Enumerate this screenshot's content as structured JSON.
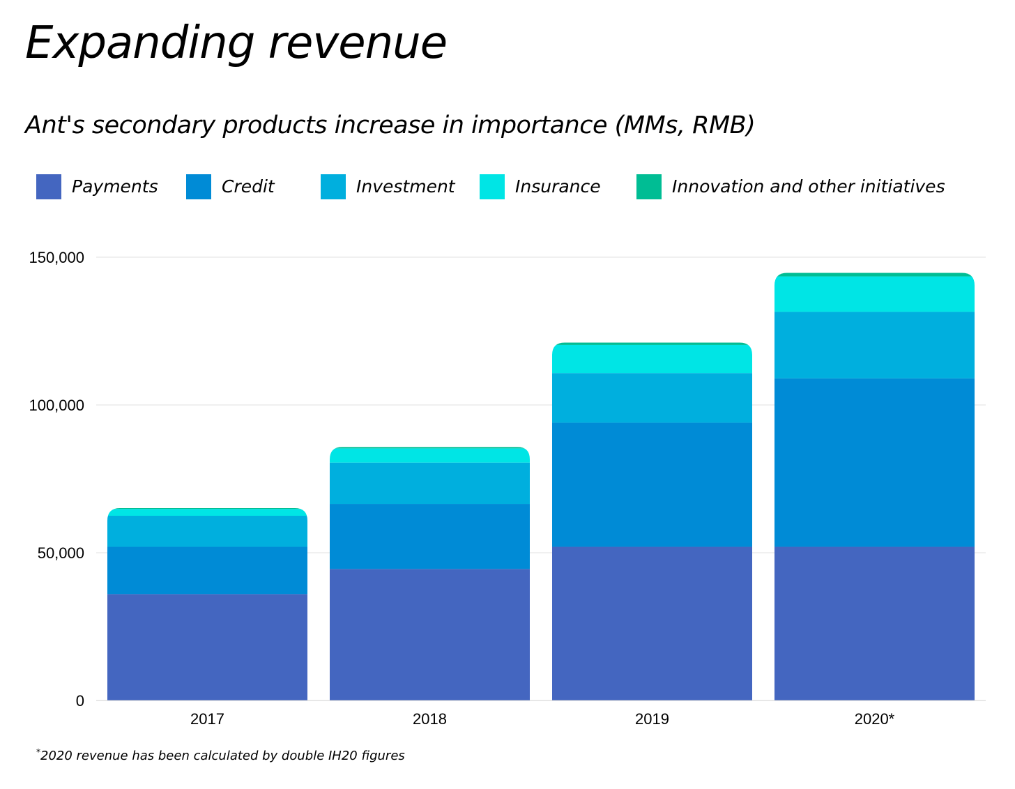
{
  "title": "Expanding revenue",
  "subtitle": "Ant's secondary products increase in importance (MMs, RMB)",
  "footnote": {
    "mark": "*",
    "text": "2020 revenue has been calculated by double IH20 figures"
  },
  "legend": [
    {
      "name": "Payments",
      "color": "#4466c0"
    },
    {
      "name": "Credit",
      "color": "#008bd6"
    },
    {
      "name": "Investment",
      "color": "#00afde"
    },
    {
      "name": "Insurance",
      "color": "#00e5e5"
    },
    {
      "name": "Innovation and other initiatives",
      "color": "#00bd94"
    }
  ],
  "chart_data": {
    "type": "bar",
    "stacked": true,
    "categories": [
      "2017",
      "2018",
      "2019",
      "2020*"
    ],
    "series": [
      {
        "name": "Payments",
        "color": "#4466c0",
        "values": [
          36000,
          44500,
          52000,
          52000
        ]
      },
      {
        "name": "Credit",
        "color": "#008bd6",
        "values": [
          16000,
          22000,
          42000,
          57000
        ]
      },
      {
        "name": "Investment",
        "color": "#00afde",
        "values": [
          10500,
          14000,
          16800,
          22500
        ]
      },
      {
        "name": "Insurance",
        "color": "#00e5e5",
        "values": [
          2300,
          4800,
          9500,
          12000
        ]
      },
      {
        "name": "Innovation and other initiatives",
        "color": "#00bd94",
        "values": [
          300,
          500,
          800,
          1200
        ]
      }
    ],
    "yticks": [
      0,
      50000,
      100000,
      150000
    ],
    "ytick_labels": [
      "0",
      "50,000",
      "100,000",
      "150,000"
    ],
    "ylim": [
      0,
      150000
    ],
    "grid": true,
    "legend_position": "top"
  }
}
